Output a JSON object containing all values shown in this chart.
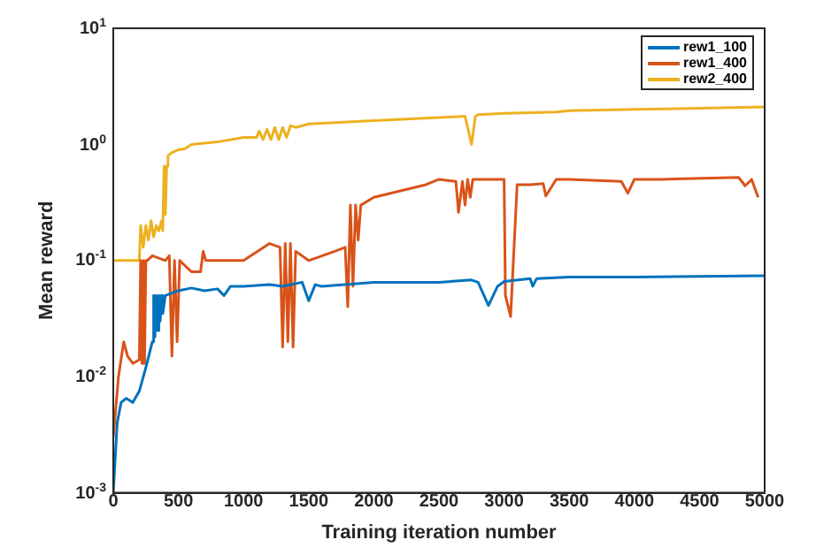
{
  "chart_data": {
    "type": "line",
    "xlabel": "Training iteration number",
    "ylabel": "Mean reward",
    "log": "y",
    "xlim": [
      0,
      5000
    ],
    "ylim": [
      0.001,
      10
    ],
    "xticks": [
      0,
      500,
      1000,
      1500,
      2000,
      2500,
      3000,
      3500,
      4000,
      4500,
      5000
    ],
    "yticks": [
      {
        "value": 0.001,
        "label": "10$^{-3}$"
      },
      {
        "value": 0.01,
        "label": "10$^{-2}$"
      },
      {
        "value": 0.1,
        "label": "10$^{-1}$"
      },
      {
        "value": 1,
        "label": "10$^{0}$"
      },
      {
        "value": 10,
        "label": "10$^{1}$"
      }
    ],
    "grid": false,
    "legend": "top right",
    "marker": "none",
    "line_style": "solid",
    "series": [
      {
        "name": "rew1_100",
        "color": "#0072bd",
        "x": [
          0,
          30,
          60,
          100,
          150,
          200,
          250,
          300,
          310,
          320,
          330,
          340,
          350,
          360,
          370,
          380,
          400,
          500,
          600,
          700,
          800,
          850,
          900,
          1000,
          1200,
          1300,
          1450,
          1500,
          1550,
          1600,
          2000,
          2500,
          2750,
          2800,
          2880,
          2950,
          3000,
          3200,
          3220,
          3250,
          3500,
          4000,
          4500,
          5000
        ],
        "values": [
          0.001,
          0.004,
          0.006,
          0.0065,
          0.006,
          0.0075,
          0.012,
          0.02,
          0.05,
          0.022,
          0.05,
          0.025,
          0.05,
          0.03,
          0.05,
          0.035,
          0.05,
          0.055,
          0.058,
          0.055,
          0.057,
          0.05,
          0.06,
          0.06,
          0.062,
          0.06,
          0.065,
          0.045,
          0.062,
          0.06,
          0.065,
          0.065,
          0.068,
          0.065,
          0.041,
          0.06,
          0.066,
          0.07,
          0.06,
          0.07,
          0.072,
          0.072,
          0.073,
          0.074
        ]
      },
      {
        "name": "rew1_400",
        "color": "#d95319",
        "x": [
          0,
          40,
          80,
          110,
          150,
          200,
          210,
          220,
          230,
          240,
          250,
          260,
          300,
          400,
          430,
          450,
          470,
          490,
          510,
          600,
          670,
          690,
          710,
          1000,
          1200,
          1280,
          1300,
          1320,
          1340,
          1360,
          1380,
          1400,
          1500,
          1700,
          1780,
          1800,
          1820,
          1840,
          1860,
          1880,
          1900,
          2000,
          2400,
          2500,
          2630,
          2650,
          2680,
          2700,
          2720,
          2740,
          2760,
          2950,
          3000,
          3010,
          3050,
          3100,
          3200,
          3300,
          3320,
          3400,
          3500,
          3900,
          3950,
          4000,
          4200,
          4800,
          4850,
          4900,
          4950
        ],
        "values": [
          0.003,
          0.01,
          0.02,
          0.015,
          0.013,
          0.014,
          0.1,
          0.013,
          0.1,
          0.013,
          0.1,
          0.1,
          0.11,
          0.1,
          0.11,
          0.015,
          0.1,
          0.02,
          0.1,
          0.08,
          0.08,
          0.12,
          0.1,
          0.1,
          0.14,
          0.13,
          0.018,
          0.14,
          0.02,
          0.14,
          0.018,
          0.12,
          0.1,
          0.12,
          0.13,
          0.04,
          0.3,
          0.06,
          0.3,
          0.15,
          0.3,
          0.35,
          0.45,
          0.5,
          0.48,
          0.26,
          0.48,
          0.3,
          0.5,
          0.35,
          0.5,
          0.5,
          0.5,
          0.05,
          0.033,
          0.45,
          0.45,
          0.46,
          0.36,
          0.5,
          0.5,
          0.48,
          0.38,
          0.5,
          0.5,
          0.52,
          0.44,
          0.5,
          0.35
        ]
      },
      {
        "name": "rew2_400",
        "color": "#edb120",
        "x": [
          0,
          100,
          150,
          200,
          210,
          230,
          250,
          270,
          290,
          310,
          330,
          350,
          370,
          380,
          390,
          400,
          410,
          420,
          450,
          500,
          550,
          600,
          800,
          1000,
          1100,
          1120,
          1150,
          1180,
          1210,
          1240,
          1270,
          1300,
          1330,
          1360,
          1400,
          1450,
          1500,
          2000,
          2500,
          2700,
          2750,
          2780,
          2800,
          3000,
          3400,
          3500,
          4000,
          4500,
          5000
        ],
        "values": [
          0.1,
          0.1,
          0.1,
          0.1,
          0.2,
          0.13,
          0.2,
          0.15,
          0.22,
          0.16,
          0.2,
          0.18,
          0.22,
          0.18,
          0.65,
          0.25,
          0.65,
          0.8,
          0.85,
          0.9,
          0.92,
          1,
          1.05,
          1.15,
          1.15,
          1.3,
          1.1,
          1.35,
          1.1,
          1.4,
          1.1,
          1.4,
          1.15,
          1.45,
          1.4,
          1.45,
          1.5,
          1.6,
          1.7,
          1.75,
          1.0,
          1.75,
          1.8,
          1.85,
          1.9,
          1.95,
          2.0,
          2.05,
          2.1
        ]
      }
    ]
  }
}
